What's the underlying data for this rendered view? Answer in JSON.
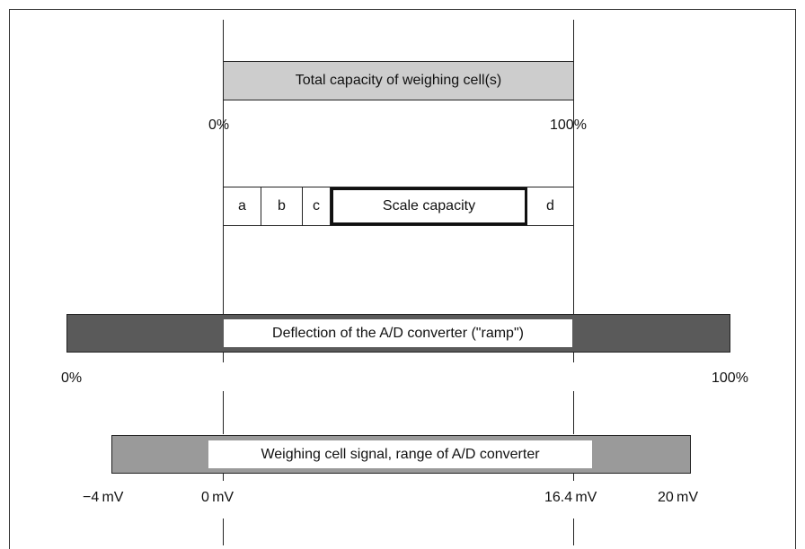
{
  "total_capacity": {
    "label": "Total capacity of weighing cell(s)",
    "start": "0%",
    "end": "100%"
  },
  "segments": {
    "a": "a",
    "b": "b",
    "c": "c",
    "scale": "Scale capacity",
    "d": "d"
  },
  "ramp": {
    "label": "Deflection of the A/D converter (\"ramp\")",
    "start": "0%",
    "end": "100%"
  },
  "signal": {
    "label": "Weighing cell signal, range of A/D converter",
    "ticks": [
      "−4 mV",
      "0 mV",
      "16.4 mV",
      "20 mV"
    ]
  },
  "colors": {
    "light_gray": "#cdcdcd",
    "dark_gray": "#5a5a5a",
    "mid_gray": "#9a9a9a"
  }
}
